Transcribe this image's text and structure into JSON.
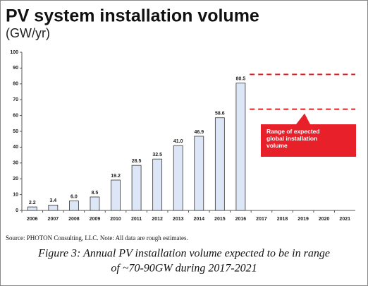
{
  "chart_data": {
    "type": "bar",
    "title": "PV system installation volume",
    "subtitle": "(GW/yr)",
    "categories": [
      "2006",
      "2007",
      "2008",
      "2009",
      "2010",
      "2011",
      "2012",
      "2013",
      "2014",
      "2015",
      "2016",
      "2017",
      "2018",
      "2019",
      "2020",
      "2021"
    ],
    "values": [
      2.2,
      3.4,
      6.0,
      8.5,
      19.2,
      28.5,
      32.5,
      41.0,
      46.9,
      58.6,
      80.5,
      null,
      null,
      null,
      null,
      null
    ],
    "value_labels": [
      "2.2",
      "3.4",
      "6.0",
      "8.5",
      "19.2",
      "28.5",
      "32.5",
      "41.0",
      "46.9",
      "58.6",
      "80.5",
      null,
      null,
      null,
      null,
      null
    ],
    "color": "#dde6f6",
    "ylim": [
      0,
      100
    ],
    "yticks": [
      0,
      10,
      20,
      30,
      40,
      50,
      60,
      70,
      80,
      90,
      100
    ],
    "expected_range": [
      64,
      86
    ],
    "annotation": "Range of expected global installation volume",
    "source": "Source: PHOTON Consulting, LLC. Note: All data are rough estimates.",
    "caption": [
      "Figure 3: Annual PV installation volume expected to be in range",
      "of ~70-90GW during 2017-2021"
    ]
  }
}
